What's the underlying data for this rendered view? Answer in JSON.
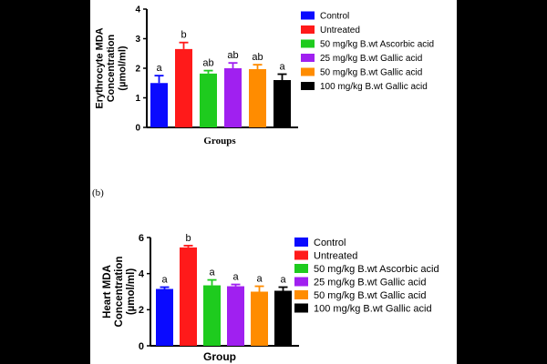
{
  "colors": [
    "#0a0aff",
    "#ff1a1a",
    "#1ecb1e",
    "#a020f0",
    "#ff8c00",
    "#000000"
  ],
  "panel_b_label": "(b)",
  "chart_data": [
    {
      "type": "bar",
      "title": "",
      "xlabel": "Groups",
      "ylabel": [
        "Erythrocyte MDA",
        "Concentration",
        "(µmol/ml)"
      ],
      "ylim": [
        0,
        4
      ],
      "yticks": [
        0,
        1,
        2,
        3,
        4
      ],
      "categories": [
        "Control",
        "Untreated",
        "50 mg/kg B.wt Ascorbic acid",
        "25 mg/kg B.wt Gallic acid",
        "50 mg/kg B.wt Gallic acid",
        "100 mg/kg B.wt Gallic acid"
      ],
      "values": [
        1.5,
        2.65,
        1.82,
        2.0,
        1.97,
        1.6
      ],
      "errors": [
        0.25,
        0.22,
        0.1,
        0.18,
        0.15,
        0.2
      ],
      "significance": [
        "a",
        "b",
        "ab",
        "ab",
        "ab",
        "a"
      ],
      "legend": [
        "Control",
        "Untreated",
        "50 mg/kg B.wt Ascorbic acid",
        "25 mg/kg B.wt Gallic acid",
        "50 mg/kg B.wt Gallic acid",
        "100 mg/kg B.wt Gallic acid"
      ],
      "legend_position": "right",
      "grid": false
    },
    {
      "type": "bar",
      "title": "",
      "xlabel": "Group",
      "ylabel": [
        "Heart MDA",
        "Concentration",
        "(µmol/ml)"
      ],
      "ylim": [
        0,
        6
      ],
      "yticks": [
        0,
        2,
        4,
        6
      ],
      "categories": [
        "Control",
        "Untreated",
        "50 mg/kg B.wt Ascorbic acid",
        "25 mg/kg B.wt Gallic acid",
        "50 mg/kg B.wt Gallic acid",
        "100 mg/kg B.wt Gallic acid"
      ],
      "values": [
        3.15,
        5.45,
        3.35,
        3.3,
        3.0,
        3.05
      ],
      "errors": [
        0.1,
        0.1,
        0.3,
        0.1,
        0.3,
        0.2
      ],
      "significance": [
        "a",
        "b",
        "a",
        "a",
        "a",
        "a"
      ],
      "legend": [
        "Control",
        "Untreated",
        "50 mg/kg B.wt Ascorbic acid",
        "25 mg/kg B.wt Gallic acid",
        "50 mg/kg B.wt Gallic acid",
        "100 mg/kg B.wt Gallic acid"
      ],
      "legend_position": "right",
      "grid": false
    }
  ]
}
